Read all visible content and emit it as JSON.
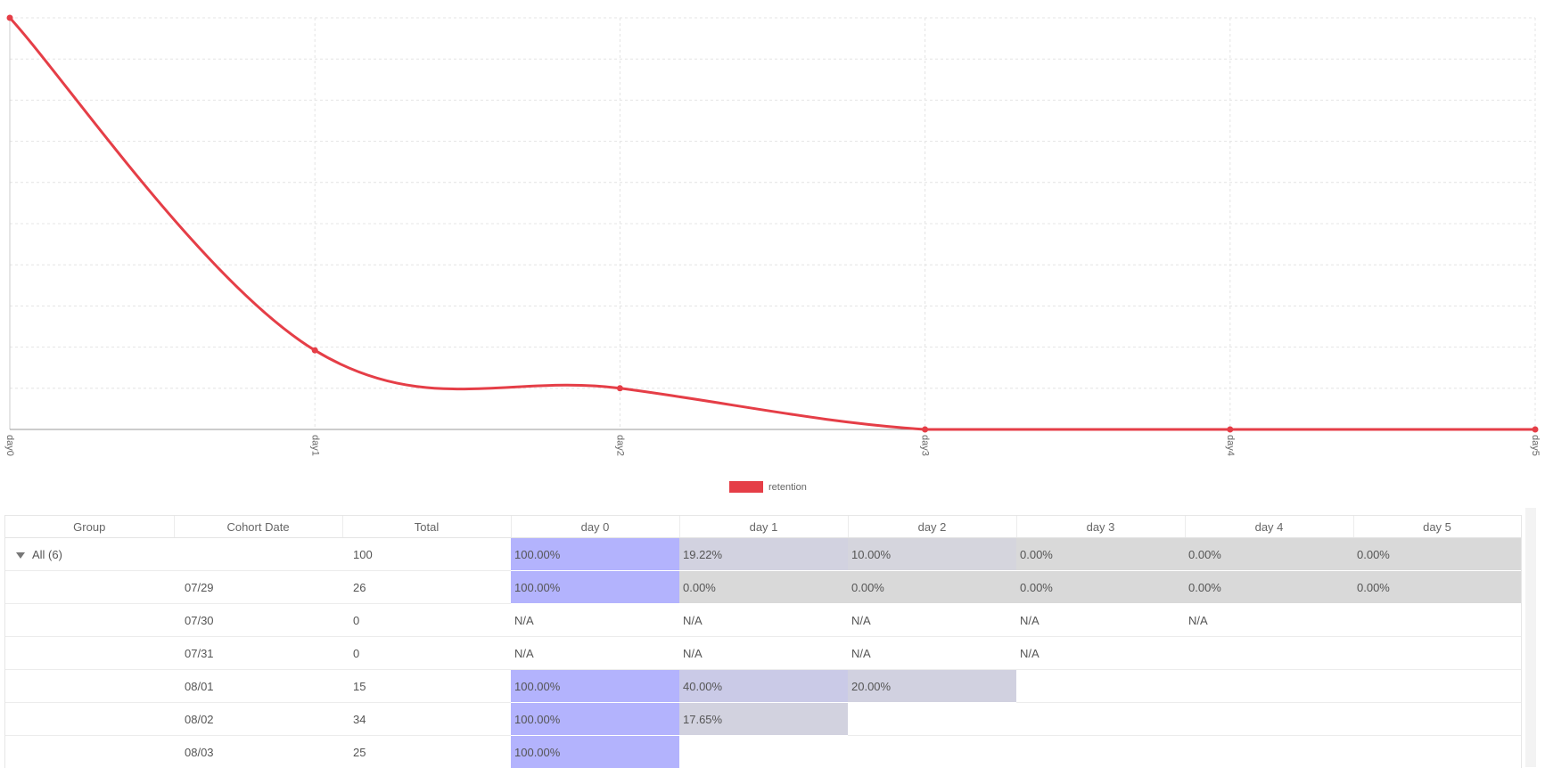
{
  "chart_data": {
    "type": "line",
    "x": [
      "day0",
      "day1",
      "day2",
      "day3",
      "day4",
      "day5"
    ],
    "series": [
      {
        "name": "retention",
        "values": [
          100,
          19.22,
          10.0,
          0.0,
          0.0,
          0.0
        ]
      }
    ],
    "ylim": [
      0,
      100
    ],
    "grid": true,
    "legend_position": "bottom-center",
    "line_color": "#e53e47",
    "smooth": true
  },
  "legend": {
    "label": "retention",
    "color": "#e53e47"
  },
  "table": {
    "headers": [
      "Group",
      "Cohort Date",
      "Total",
      "day 0",
      "day 1",
      "day 2",
      "day 3",
      "day 4",
      "day 5"
    ],
    "group_label": "All (6)",
    "rows": [
      {
        "group": "All (6)",
        "date": "",
        "total": "100",
        "cells": [
          "100.00%",
          "19.22%",
          "10.00%",
          "0.00%",
          "0.00%",
          "0.00%"
        ]
      },
      {
        "group": "",
        "date": "07/29",
        "total": "26",
        "cells": [
          "100.00%",
          "0.00%",
          "0.00%",
          "0.00%",
          "0.00%",
          "0.00%"
        ]
      },
      {
        "group": "",
        "date": "07/30",
        "total": "0",
        "cells": [
          "N/A",
          "N/A",
          "N/A",
          "N/A",
          "N/A",
          ""
        ]
      },
      {
        "group": "",
        "date": "07/31",
        "total": "0",
        "cells": [
          "N/A",
          "N/A",
          "N/A",
          "N/A",
          "",
          ""
        ]
      },
      {
        "group": "",
        "date": "08/01",
        "total": "15",
        "cells": [
          "100.00%",
          "40.00%",
          "20.00%",
          "",
          "",
          ""
        ]
      },
      {
        "group": "",
        "date": "08/02",
        "total": "34",
        "cells": [
          "100.00%",
          "17.65%",
          "",
          "",
          "",
          ""
        ]
      },
      {
        "group": "",
        "date": "08/03",
        "total": "25",
        "cells": [
          "100.00%",
          "",
          "",
          "",
          "",
          ""
        ]
      }
    ],
    "colors": {
      "full": "#b3b3fd",
      "zero": "#d9d9d9"
    }
  }
}
